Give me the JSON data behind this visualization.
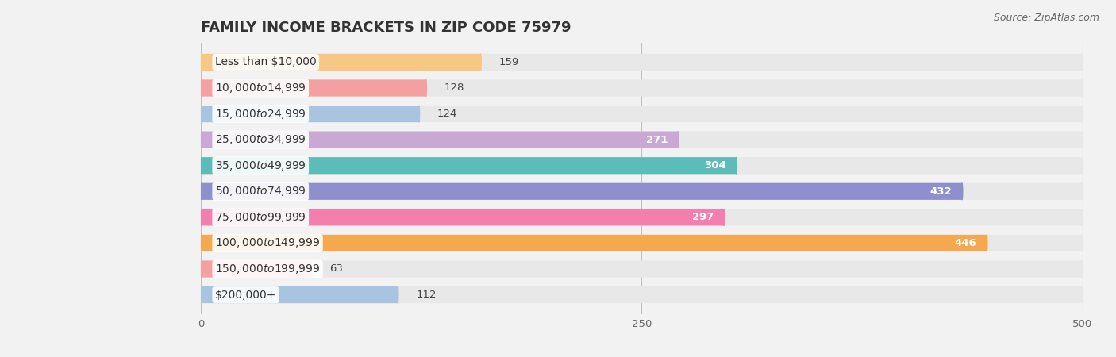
{
  "title": "FAMILY INCOME BRACKETS IN ZIP CODE 75979",
  "source": "Source: ZipAtlas.com",
  "categories": [
    "Less than $10,000",
    "$10,000 to $14,999",
    "$15,000 to $24,999",
    "$25,000 to $34,999",
    "$35,000 to $49,999",
    "$50,000 to $74,999",
    "$75,000 to $99,999",
    "$100,000 to $149,999",
    "$150,000 to $199,999",
    "$200,000+"
  ],
  "values": [
    159,
    128,
    124,
    271,
    304,
    432,
    297,
    446,
    63,
    112
  ],
  "bar_colors": [
    "#F9C784",
    "#F4A0A0",
    "#A8C4E0",
    "#C9A8D4",
    "#5BBCB8",
    "#8E8FCC",
    "#F47FAF",
    "#F5A84E",
    "#F4A0A0",
    "#A8C4E0"
  ],
  "bg_color": "#f2f2f2",
  "row_bg_color": "#e8e8e8",
  "xlim_max": 500,
  "xticks": [
    0,
    250,
    500
  ],
  "title_fontsize": 13,
  "label_fontsize": 10,
  "value_fontsize": 9.5,
  "source_fontsize": 9
}
